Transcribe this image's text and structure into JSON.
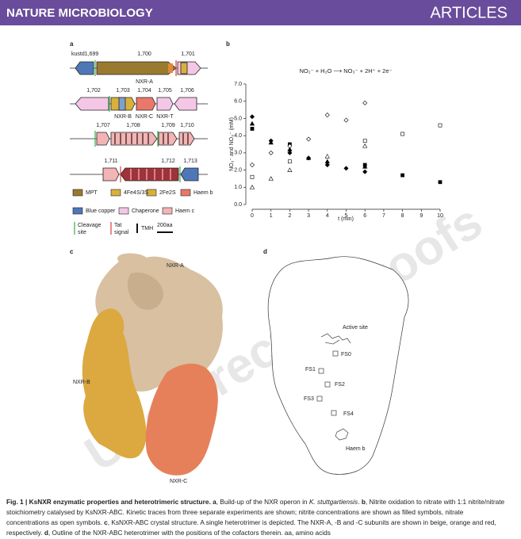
{
  "header": {
    "journal": "NATURE MICROBIOLOGY",
    "section": "ARTICLES"
  },
  "watermark": "Uncorrected proofs",
  "panel_a": {
    "letter": "a",
    "genes": [
      "kustd1,699",
      "1,700",
      "1,701",
      "NXR-A",
      "1,702",
      "1,703",
      "1,704",
      "1,705",
      "1,706",
      "NXR-B",
      "NXR-C",
      "NXR-T",
      "1,707",
      "1,708",
      "1,709",
      "1,710",
      "1,711",
      "1,712",
      "1,713"
    ],
    "legend": [
      "MPT",
      "4Fe4S/3S",
      "2Fe2S",
      "Haem b",
      "Blue copper",
      "Chaperone",
      "Haem c",
      "Cleavage site",
      "Tat signal",
      "TMH",
      "200aa"
    ]
  },
  "chart_data": {
    "type": "scatter",
    "letter": "b",
    "equation": "NO₂⁻ + H₂O ⟶ NO₃⁻ + 2H⁺ + 2e⁻",
    "x_label": "t (min)",
    "y_label": "NO₂⁻ and NO₃⁻ (mM)",
    "xlim": [
      0,
      10
    ],
    "xticks": [
      0,
      1,
      2,
      3,
      4,
      5,
      6,
      7,
      8,
      9,
      10
    ],
    "ylim": [
      0,
      7
    ],
    "yticks": [
      {
        "value": 0,
        "label": "0.0"
      },
      {
        "value": 1,
        "label": "1.0"
      },
      {
        "value": 2,
        "label": "2.0"
      },
      {
        "value": 3,
        "label": "3.0"
      },
      {
        "value": 4,
        "label": "4.0"
      },
      {
        "value": 5,
        "label": "5.0"
      },
      {
        "value": 6,
        "label": "6.0"
      },
      {
        "value": 7,
        "label": "7.0"
      }
    ],
    "series": [
      {
        "color": "#000000",
        "marker": "diamond",
        "filled": true,
        "x": [
          0,
          1,
          2,
          3,
          4,
          5,
          6
        ],
        "values": [
          5.1,
          3.7,
          3.0,
          2.7,
          2.3,
          2.1,
          1.9
        ]
      },
      {
        "color": "#000000",
        "marker": "triangle",
        "filled": true,
        "x": [
          0,
          1,
          2,
          3,
          4,
          6
        ],
        "values": [
          4.7,
          3.6,
          3.2,
          2.7,
          2.5,
          2.2
        ]
      },
      {
        "color": "#000000",
        "marker": "square",
        "filled": true,
        "x": [
          0,
          2,
          6,
          8,
          10
        ],
        "values": [
          4.4,
          3.5,
          2.3,
          1.7,
          1.3
        ]
      },
      {
        "color": "#000000",
        "marker": "diamond",
        "filled": false,
        "x": [
          0,
          1,
          2,
          3,
          4,
          5,
          6
        ],
        "values": [
          2.3,
          3.0,
          3.4,
          3.8,
          5.2,
          4.9,
          5.9
        ]
      },
      {
        "color": "#000000",
        "marker": "triangle",
        "filled": false,
        "x": [
          0,
          1,
          2,
          4,
          6
        ],
        "values": [
          1.0,
          1.5,
          2.0,
          2.8,
          3.4
        ]
      },
      {
        "color": "#000000",
        "marker": "square",
        "filled": false,
        "x": [
          0,
          2,
          6,
          8,
          10
        ],
        "values": [
          1.6,
          2.5,
          3.7,
          4.1,
          4.6
        ]
      }
    ]
  },
  "panel_c": {
    "letter": "c",
    "labels": [
      "NXR-A",
      "NXR-B",
      "NXR-C"
    ]
  },
  "panel_d": {
    "letter": "d",
    "labels": [
      "Active site",
      "FS0",
      "FS1",
      "FS2",
      "FS3",
      "FS4",
      "Haem b"
    ]
  },
  "caption": [
    {
      "text": "Fig. 1 | KsNXR enzymatic properties and heterotrimeric structure. ",
      "style": "bold"
    },
    {
      "text": "a",
      "style": "bold"
    },
    {
      "text": ", Build-up of the NXR operon in ",
      "style": "normal"
    },
    {
      "text": "K. stuttgartiensis",
      "style": "italic"
    },
    {
      "text": ". ",
      "style": "normal"
    },
    {
      "text": "b",
      "style": "bold"
    },
    {
      "text": ", Nitrite oxidation to nitrate with 1:1 nitrite/nitrate stoichiometry catalysed by KsNXR-ABC. Kinetic traces from three separate experiments are shown; nitrite concentrations are shown as filled symbols, nitrate concentrations as open symbols. ",
      "style": "normal"
    },
    {
      "text": "c",
      "style": "bold"
    },
    {
      "text": ", KsNXR-ABC crystal structure. A single heterotrimer is depicted. The NXR-A, -B and -C subunits are shown in beige, orange and red, respectively. ",
      "style": "normal"
    },
    {
      "text": "d",
      "style": "bold"
    },
    {
      "text": ", Outline of the NXR-ABC heterotrimer with the positions of the cofactors therein. aa, amino acids",
      "style": "normal"
    }
  ]
}
